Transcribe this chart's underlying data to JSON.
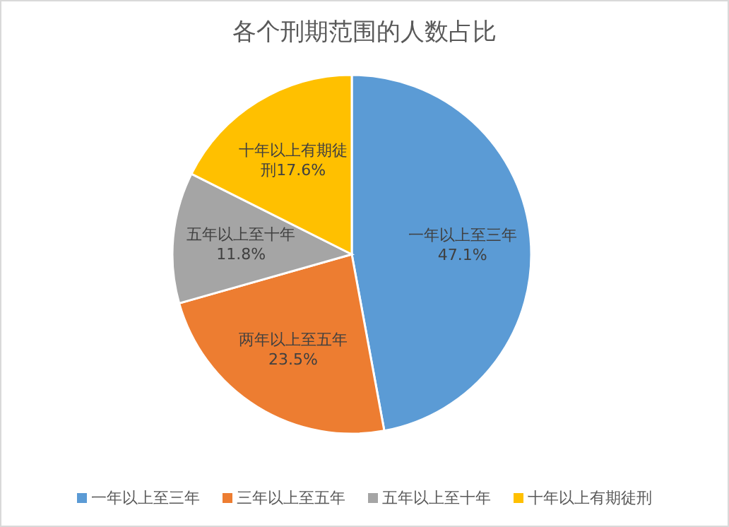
{
  "chart_data": {
    "type": "pie",
    "title": "各个刑期范围的人数占比",
    "categories": [
      "一年以上至三年",
      "三年以上至五年",
      "五年以上至十年",
      "十年以上有期徒刑"
    ],
    "values": [
      47.1,
      23.5,
      11.8,
      17.6
    ],
    "colors": [
      "#5b9bd5",
      "#ed7d31",
      "#a5a5a5",
      "#ffc000"
    ],
    "value_labels": [
      "一年以上至三年47.1%",
      "两年以上至五年23.5%",
      "五年以上至十年11.8%",
      "十年以上有期徒刑17.6%"
    ],
    "legend": "bottom"
  }
}
